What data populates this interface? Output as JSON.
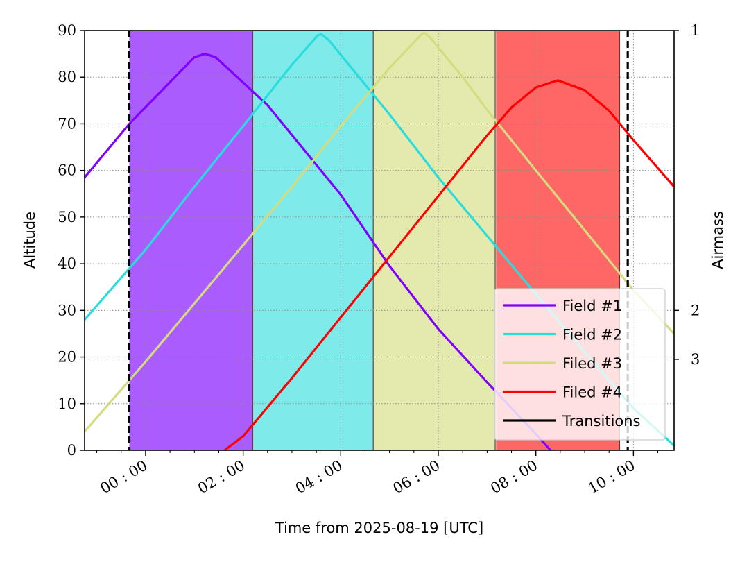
{
  "chart_data": {
    "type": "line",
    "date": "2025-08-19",
    "xlabel": "Time from 2025-08-19 [UTC]",
    "ylabel": "Altitude",
    "y2label": "Airmass",
    "xlim": [
      "2025-08-18 22:45",
      "2025-08-19 10:50"
    ],
    "ylim": [
      0,
      90
    ],
    "yticks": [
      0,
      10,
      20,
      30,
      40,
      50,
      60,
      70,
      80,
      90
    ],
    "xticks": [
      {
        "t": "2025-08-19 00:00",
        "label": "00 : 00"
      },
      {
        "t": "2025-08-19 02:00",
        "label": "02 : 00"
      },
      {
        "t": "2025-08-19 04:00",
        "label": "04 : 00"
      },
      {
        "t": "2025-08-19 06:00",
        "label": "06 : 00"
      },
      {
        "t": "2025-08-19 08:00",
        "label": "08 : 00"
      },
      {
        "t": "2025-08-19 10:00",
        "label": "10 : 00"
      }
    ],
    "minor_xticks": [
      "2025-08-18 23:00",
      "2025-08-18 23:30",
      "2025-08-19 00:30",
      "2025-08-19 01:00",
      "2025-08-19 01:30",
      "2025-08-19 02:30",
      "2025-08-19 03:00",
      "2025-08-19 03:30",
      "2025-08-19 04:30",
      "2025-08-19 05:00",
      "2025-08-19 05:30",
      "2025-08-19 06:30",
      "2025-08-19 07:00",
      "2025-08-19 07:30",
      "2025-08-19 08:30",
      "2025-08-19 09:00",
      "2025-08-19 09:30",
      "2025-08-19 10:30"
    ],
    "airmass_ticks": [
      {
        "altitude": 90,
        "label": "1"
      },
      {
        "altitude": 30,
        "label": "2"
      },
      {
        "altitude": 19.5,
        "label": "3"
      }
    ],
    "grid": true,
    "legend_position": "lower-right",
    "series": [
      {
        "name": "Field #1",
        "color": "#7f00ff",
        "points": [
          [
            "2025-08-18 22:45",
            58.5
          ],
          [
            "2025-08-18 23:40",
            70
          ],
          [
            "2025-08-19 01:00",
            84.3
          ],
          [
            "2025-08-19 01:13",
            85
          ],
          [
            "2025-08-19 01:26",
            84.3
          ],
          [
            "2025-08-19 02:30",
            74
          ],
          [
            "2025-08-19 04:00",
            54.8
          ],
          [
            "2025-08-19 05:00",
            39.5
          ],
          [
            "2025-08-19 06:00",
            26
          ],
          [
            "2025-08-19 07:00",
            14.6
          ],
          [
            "2025-08-19 08:00",
            3.5
          ],
          [
            "2025-08-19 08:18",
            0
          ]
        ]
      },
      {
        "name": "Field #2",
        "color": "#2adddd",
        "points": [
          [
            "2025-08-18 22:45",
            28
          ],
          [
            "2025-08-19 00:00",
            43
          ],
          [
            "2025-08-19 01:00",
            56.5
          ],
          [
            "2025-08-19 02:00",
            69.5
          ],
          [
            "2025-08-19 03:00",
            82.7
          ],
          [
            "2025-08-19 03:32",
            89
          ],
          [
            "2025-08-19 03:36",
            89.2
          ],
          [
            "2025-08-19 03:45",
            88
          ],
          [
            "2025-08-19 05:00",
            72
          ],
          [
            "2025-08-19 06:00",
            58.5
          ],
          [
            "2025-08-19 07:00",
            46
          ],
          [
            "2025-08-19 08:00",
            33.5
          ],
          [
            "2025-08-19 09:00",
            21
          ],
          [
            "2025-08-19 10:00",
            9
          ],
          [
            "2025-08-19 10:50",
            1
          ]
        ]
      },
      {
        "name": "Filed #3",
        "color": "#d4dc7f",
        "points": [
          [
            "2025-08-18 22:45",
            4
          ],
          [
            "2025-08-19 00:00",
            19
          ],
          [
            "2025-08-19 01:00",
            31.5
          ],
          [
            "2025-08-19 02:00",
            44
          ],
          [
            "2025-08-19 03:00",
            56.5
          ],
          [
            "2025-08-19 04:00",
            69.5
          ],
          [
            "2025-08-19 05:00",
            82
          ],
          [
            "2025-08-19 05:40",
            89.3
          ],
          [
            "2025-08-19 05:43",
            89.5
          ],
          [
            "2025-08-19 05:50",
            88.5
          ],
          [
            "2025-08-19 06:30",
            80
          ],
          [
            "2025-08-19 07:00",
            73
          ],
          [
            "2025-08-19 08:00",
            60
          ],
          [
            "2025-08-19 09:00",
            47.2
          ],
          [
            "2025-08-19 10:00",
            34.3
          ],
          [
            "2025-08-19 10:50",
            25
          ]
        ]
      },
      {
        "name": "Filed #4",
        "color": "#ff0000",
        "points": [
          [
            "2025-08-19 01:37",
            0
          ],
          [
            "2025-08-19 02:00",
            3
          ],
          [
            "2025-08-19 03:00",
            15.5
          ],
          [
            "2025-08-19 04:00",
            28.5
          ],
          [
            "2025-08-19 05:00",
            41.5
          ],
          [
            "2025-08-19 06:00",
            54.5
          ],
          [
            "2025-08-19 07:00",
            67.5
          ],
          [
            "2025-08-19 07:30",
            73.5
          ],
          [
            "2025-08-19 08:00",
            77.8
          ],
          [
            "2025-08-19 08:27",
            79.3
          ],
          [
            "2025-08-19 09:00",
            77.2
          ],
          [
            "2025-08-19 09:30",
            72.8
          ],
          [
            "2025-08-19 10:00",
            66.5
          ],
          [
            "2025-08-19 10:30",
            60.5
          ],
          [
            "2025-08-19 10:50",
            56.5
          ]
        ]
      },
      {
        "name": "Transitions",
        "color": "#000000",
        "points": []
      }
    ],
    "observation_blocks": [
      {
        "field": "Field #1",
        "start": "2025-08-18 23:40",
        "end": "2025-08-19 02:12",
        "color": "#aa5cff"
      },
      {
        "field": "Field #2",
        "start": "2025-08-19 02:13",
        "end": "2025-08-19 04:40",
        "color": "#7eeaea"
      },
      {
        "field": "Filed #3",
        "start": "2025-08-19 04:41",
        "end": "2025-08-19 07:10",
        "color": "#e4e9ae"
      },
      {
        "field": "Filed #4",
        "start": "2025-08-19 07:11",
        "end": "2025-08-19 09:43",
        "color": "#ff6666"
      }
    ],
    "dashed_boundaries": [
      "2025-08-18 23:40",
      "2025-08-19 09:53"
    ]
  }
}
